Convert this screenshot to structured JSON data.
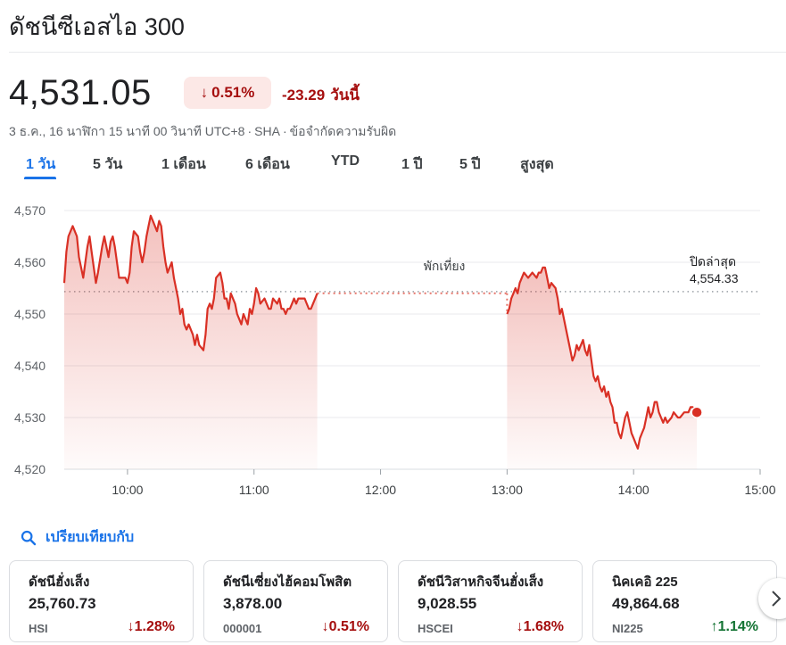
{
  "header": {
    "title": "ดัชนีซีเอสไอ 300"
  },
  "quote": {
    "price": "4,531.05",
    "pct_change": "0.51%",
    "abs_change": "-23.29",
    "period": "วันนี้",
    "direction": "down",
    "meta_time": "3 ธ.ค., 16 นาฬิกา 15 นาที 00 วินาที UTC+8",
    "meta_exchange": "SHA",
    "meta_disclaimer": "ข้อจำกัดความรับผิด"
  },
  "tabs": [
    {
      "label": "1 วัน",
      "active": true
    },
    {
      "label": "5 วัน",
      "active": false
    },
    {
      "label": "1 เดือน",
      "active": false
    },
    {
      "label": "6 เดือน",
      "active": false
    },
    {
      "label": "YTD",
      "active": false
    },
    {
      "label": "1 ปี",
      "active": false
    },
    {
      "label": "5 ปี",
      "active": false
    },
    {
      "label": "สูงสุด",
      "active": false
    }
  ],
  "chart_data": {
    "type": "line",
    "ylim": [
      4520,
      4570
    ],
    "y_ticks": [
      "4,520",
      "4,530",
      "4,540",
      "4,550",
      "4,560",
      "4,570"
    ],
    "x_ticks": [
      "10:00",
      "11:00",
      "12:00",
      "13:00",
      "14:00",
      "15:00"
    ],
    "grid": true,
    "previous_close_label": "ปิดล่าสุด",
    "previous_close_value": "4,554.33",
    "previous_close": 4554.33,
    "lunch_break_label": "พักเที่ยง",
    "line_color": "#d93025",
    "morning_session": [
      [
        "09:30",
        4556
      ],
      [
        "09:31",
        4562
      ],
      [
        "09:32",
        4565
      ],
      [
        "09:34",
        4567
      ],
      [
        "09:36",
        4565
      ],
      [
        "09:37",
        4561
      ],
      [
        "09:38",
        4559
      ],
      [
        "09:39",
        4557
      ],
      [
        "09:41",
        4563
      ],
      [
        "09:42",
        4565
      ],
      [
        "09:43",
        4562
      ],
      [
        "09:44",
        4559
      ],
      [
        "09:45",
        4556
      ],
      [
        "09:46",
        4558
      ],
      [
        "09:48",
        4563
      ],
      [
        "09:49",
        4565
      ],
      [
        "09:50",
        4563
      ],
      [
        "09:51",
        4561
      ],
      [
        "09:52",
        4564
      ],
      [
        "09:53",
        4565
      ],
      [
        "09:54",
        4563
      ],
      [
        "09:55",
        4560
      ],
      [
        "09:56",
        4557
      ],
      [
        "09:58",
        4557
      ],
      [
        "09:59",
        4557
      ],
      [
        "10:00",
        4556
      ],
      [
        "10:01",
        4558
      ],
      [
        "10:02",
        4563
      ],
      [
        "10:03",
        4566
      ],
      [
        "10:05",
        4565
      ],
      [
        "10:06",
        4562
      ],
      [
        "10:07",
        4560
      ],
      [
        "10:08",
        4562
      ],
      [
        "10:09",
        4565
      ],
      [
        "10:10",
        4567
      ],
      [
        "10:11",
        4569
      ],
      [
        "10:12",
        4568
      ],
      [
        "10:14",
        4566
      ],
      [
        "10:15",
        4568
      ],
      [
        "10:16",
        4567
      ],
      [
        "10:17",
        4563
      ],
      [
        "10:18",
        4560
      ],
      [
        "10:19",
        4558
      ],
      [
        "10:21",
        4560
      ],
      [
        "10:22",
        4557
      ],
      [
        "10:24",
        4553
      ],
      [
        "10:25",
        4550
      ],
      [
        "10:26",
        4551
      ],
      [
        "10:27",
        4548
      ],
      [
        "10:28",
        4547
      ],
      [
        "10:29",
        4548
      ],
      [
        "10:31",
        4546
      ],
      [
        "10:32",
        4544
      ],
      [
        "10:33",
        4546
      ],
      [
        "10:34",
        4544
      ],
      [
        "10:36",
        4543
      ],
      [
        "10:37",
        4546
      ],
      [
        "10:38",
        4551
      ],
      [
        "10:39",
        4552
      ],
      [
        "10:40",
        4551
      ],
      [
        "10:41",
        4553
      ],
      [
        "10:42",
        4557
      ],
      [
        "10:44",
        4558
      ],
      [
        "10:45",
        4556
      ],
      [
        "10:46",
        4553
      ],
      [
        "10:47",
        4553
      ],
      [
        "10:48",
        4551
      ],
      [
        "10:49",
        4554
      ],
      [
        "10:51",
        4552
      ],
      [
        "10:52",
        4550
      ],
      [
        "10:53",
        4549
      ],
      [
        "10:54",
        4548
      ],
      [
        "10:55",
        4550
      ],
      [
        "10:57",
        4548
      ],
      [
        "10:58",
        4551
      ],
      [
        "10:59",
        4550
      ],
      [
        "11:00",
        4552
      ],
      [
        "11:01",
        4555
      ],
      [
        "11:02",
        4554
      ],
      [
        "11:03",
        4552
      ],
      [
        "11:05",
        4553
      ],
      [
        "11:06",
        4552
      ],
      [
        "11:07",
        4551
      ],
      [
        "11:08",
        4551
      ],
      [
        "11:09",
        4553
      ],
      [
        "11:11",
        4552
      ],
      [
        "11:12",
        4553
      ],
      [
        "11:13",
        4551
      ],
      [
        "11:14",
        4551
      ],
      [
        "11:15",
        4550
      ],
      [
        "11:16",
        4551
      ],
      [
        "11:17",
        4551
      ],
      [
        "11:18",
        4552
      ],
      [
        "11:19",
        4553
      ],
      [
        "11:20",
        4552
      ],
      [
        "11:21",
        4553
      ],
      [
        "11:22",
        4553
      ],
      [
        "11:24",
        4553
      ],
      [
        "11:25",
        4552
      ],
      [
        "11:26",
        4551
      ],
      [
        "11:27",
        4551
      ],
      [
        "11:29",
        4553
      ],
      [
        "11:30",
        4554
      ]
    ],
    "afternoon_session": [
      [
        "13:00",
        4550
      ],
      [
        "13:01",
        4551
      ],
      [
        "13:02",
        4553
      ],
      [
        "13:03",
        4554
      ],
      [
        "13:04",
        4555
      ],
      [
        "13:05",
        4554
      ],
      [
        "13:06",
        4556
      ],
      [
        "13:08",
        4558
      ],
      [
        "13:10",
        4557
      ],
      [
        "13:12",
        4558
      ],
      [
        "13:14",
        4557
      ],
      [
        "13:15",
        4558
      ],
      [
        "13:16",
        4558
      ],
      [
        "13:17",
        4559
      ],
      [
        "13:18",
        4559
      ],
      [
        "13:19",
        4557
      ],
      [
        "13:20",
        4555
      ],
      [
        "13:21",
        4556
      ],
      [
        "13:23",
        4555
      ],
      [
        "13:24",
        4553
      ],
      [
        "13:25",
        4550
      ],
      [
        "13:26",
        4551
      ],
      [
        "13:28",
        4547
      ],
      [
        "13:29",
        4545
      ],
      [
        "13:30",
        4543
      ],
      [
        "13:31",
        4541
      ],
      [
        "13:32",
        4542
      ],
      [
        "13:33",
        4544
      ],
      [
        "13:34",
        4543
      ],
      [
        "13:35",
        4544
      ],
      [
        "13:36",
        4545
      ],
      [
        "13:37",
        4543
      ],
      [
        "13:38",
        4542
      ],
      [
        "13:39",
        4544
      ],
      [
        "13:40",
        4541
      ],
      [
        "13:41",
        4538
      ],
      [
        "13:42",
        4537
      ],
      [
        "13:43",
        4538
      ],
      [
        "13:44",
        4536
      ],
      [
        "13:45",
        4535
      ],
      [
        "13:46",
        4536
      ],
      [
        "13:47",
        4534
      ],
      [
        "13:48",
        4535
      ],
      [
        "13:49",
        4533
      ],
      [
        "13:50",
        4532
      ],
      [
        "13:51",
        4529
      ],
      [
        "13:52",
        4529
      ],
      [
        "13:53",
        4527
      ],
      [
        "13:54",
        4526
      ],
      [
        "13:55",
        4528
      ],
      [
        "13:56",
        4530
      ],
      [
        "13:57",
        4531
      ],
      [
        "13:58",
        4529
      ],
      [
        "13:59",
        4527
      ],
      [
        "14:00",
        4526
      ],
      [
        "14:01",
        4525
      ],
      [
        "14:02",
        4524
      ],
      [
        "14:03",
        4526
      ],
      [
        "14:04",
        4527
      ],
      [
        "14:05",
        4528
      ],
      [
        "14:06",
        4530
      ],
      [
        "14:07",
        4532
      ],
      [
        "14:08",
        4530
      ],
      [
        "14:09",
        4531
      ],
      [
        "14:10",
        4533
      ],
      [
        "14:11",
        4533
      ],
      [
        "14:12",
        4531
      ],
      [
        "14:14",
        4529
      ],
      [
        "14:15",
        4530
      ],
      [
        "14:16",
        4529
      ],
      [
        "14:18",
        4530
      ],
      [
        "14:19",
        4531
      ],
      [
        "14:21",
        4530
      ],
      [
        "14:22",
        4530
      ],
      [
        "14:24",
        4531
      ],
      [
        "14:26",
        4531
      ],
      [
        "14:27",
        4532
      ],
      [
        "14:28",
        4532
      ],
      [
        "14:29",
        4531
      ],
      [
        "14:30",
        4531
      ]
    ]
  },
  "compare": {
    "label": "เปรียบเทียบกับ"
  },
  "related": [
    {
      "name": "ดัชนีฮั่งเส็ง",
      "value": "25,760.73",
      "code": "HSI",
      "change": "1.28%",
      "direction": "down"
    },
    {
      "name": "ดัชนีเซี่ยงไฮ้คอมโพสิต",
      "value": "3,878.00",
      "code": "000001",
      "change": "0.51%",
      "direction": "down"
    },
    {
      "name": "ดัชนีวิสาหกิจจีนฮั่งเส็ง",
      "value": "9,028.55",
      "code": "HSCEI",
      "change": "1.68%",
      "direction": "down"
    },
    {
      "name": "นิคเคอิ 225",
      "value": "49,864.68",
      "code": "NI225",
      "change": "1.14%",
      "direction": "up"
    }
  ]
}
